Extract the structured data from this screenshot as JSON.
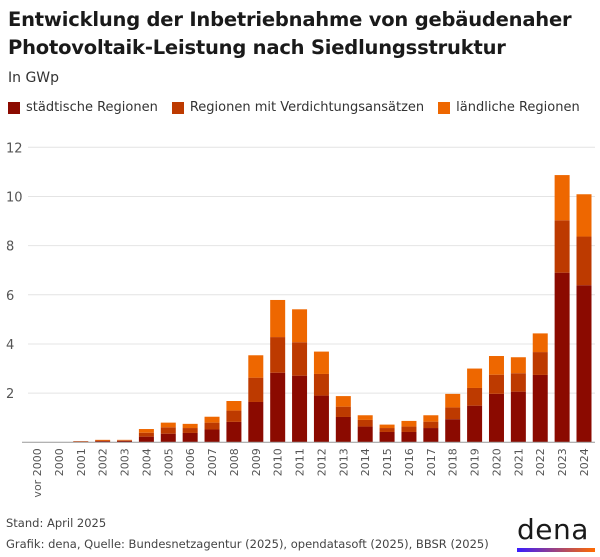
{
  "chart_data": {
    "type": "bar",
    "stacked": true,
    "title": "Entwicklung der Inbetriebnahme von gebäudenaher Photovoltaik-Leistung nach Siedlungsstruktur",
    "subtitle": "In GWp",
    "xlabel": "",
    "ylabel": "In GWp",
    "ylim": [
      0,
      12
    ],
    "yticks": [
      2,
      4,
      6,
      8,
      10,
      12
    ],
    "grid": true,
    "legend_position": "top-left",
    "categories": [
      "vor 2000",
      "2000",
      "2001",
      "2002",
      "2003",
      "2004",
      "2005",
      "2006",
      "2007",
      "2008",
      "2009",
      "2010",
      "2011",
      "2012",
      "2013",
      "2014",
      "2015",
      "2016",
      "2017",
      "2018",
      "2019",
      "2020",
      "2021",
      "2022",
      "2023",
      "2024"
    ],
    "series": [
      {
        "name": "städtische Regionen",
        "color": "#8b0a00",
        "values": [
          0,
          0,
          0.03,
          0.05,
          0.06,
          0.23,
          0.35,
          0.38,
          0.52,
          0.83,
          1.64,
          2.83,
          2.71,
          1.9,
          1.03,
          0.64,
          0.42,
          0.42,
          0.58,
          0.94,
          1.49,
          1.97,
          2.06,
          2.74,
          6.9,
          6.39
        ]
      },
      {
        "name": "Regionen mit Verdichtungsansätzen",
        "color": "#bd3a00",
        "values": [
          0,
          0,
          0.01,
          0.02,
          0.02,
          0.16,
          0.26,
          0.2,
          0.28,
          0.46,
          0.99,
          1.45,
          1.36,
          0.88,
          0.42,
          0.27,
          0.16,
          0.22,
          0.26,
          0.48,
          0.72,
          0.78,
          0.75,
          0.93,
          2.13,
          1.98
        ]
      },
      {
        "name": "ländliche Regionen",
        "color": "#ee6700",
        "values": [
          0,
          0,
          0.01,
          0.03,
          0.02,
          0.15,
          0.19,
          0.17,
          0.24,
          0.39,
          0.91,
          1.51,
          1.34,
          0.91,
          0.43,
          0.19,
          0.14,
          0.23,
          0.26,
          0.55,
          0.79,
          0.76,
          0.65,
          0.76,
          1.84,
          1.72
        ]
      }
    ]
  },
  "footer": {
    "stand": "Stand: April 2025",
    "source": "Grafik: dena, Quelle: Bundesnetzagentur (2025), opendatasoft (2025), BBSR (2025)",
    "logo": "dena"
  }
}
